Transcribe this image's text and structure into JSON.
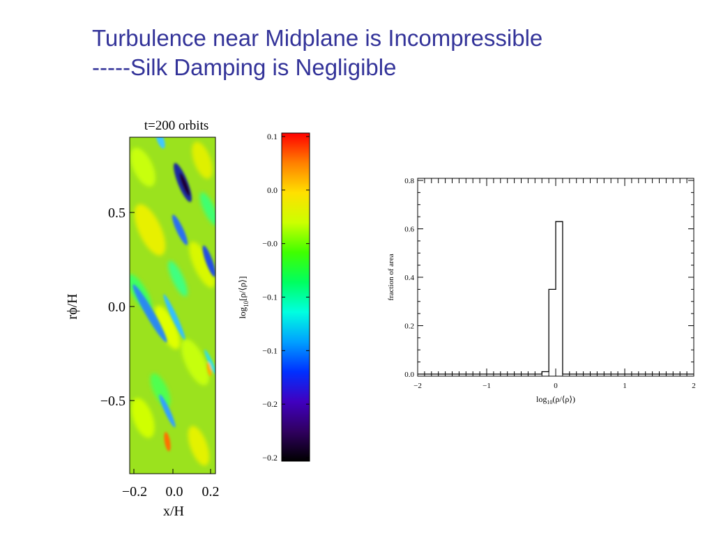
{
  "slide": {
    "title_line1": "Turbulence near Midplane is Incompressible",
    "title_line2": "-----Silk Damping is Negligible",
    "title_color": "#333399"
  },
  "density_map": {
    "title": "t=200  orbits",
    "xlabel": "x/H",
    "ylabel": "rϕ/H",
    "x_ticks": [
      "−0.2",
      "0.0",
      "0.2"
    ],
    "y_ticks": [
      "0.5",
      "0.0",
      "−0.5"
    ]
  },
  "colorbar": {
    "label": "log10[ρ/⟨ρ⟩]",
    "label_main": "log",
    "label_sub": "10",
    "label_tail": "[ρ/⟨ρ⟩]",
    "ticks": [
      "0.1",
      "0.0",
      "−0.0",
      "−0.1",
      "−0.1",
      "−0.2",
      "−0.2"
    ],
    "colormap": [
      "#ff0000",
      "#ff8000",
      "#ffe000",
      "#ccff00",
      "#40ff00",
      "#00ff60",
      "#00ffe0",
      "#00a0ff",
      "#0030ff",
      "#4000c0",
      "#300060",
      "#000000"
    ]
  },
  "chart_data": {
    "type": "histogram",
    "xlabel": "log10(ρ/⟨ρ⟩)",
    "xlabel_main": "log",
    "xlabel_sub": "10",
    "xlabel_tail": "(ρ/⟨ρ⟩)",
    "ylabel": "fraction of area",
    "xlim": [
      -2,
      2
    ],
    "ylim": [
      0,
      0.8
    ],
    "x_ticks": [
      "−2",
      "−1",
      "0",
      "1",
      "2"
    ],
    "y_ticks": [
      "0.0",
      "0.2",
      "0.4",
      "0.6",
      "0.8"
    ],
    "bins": [
      {
        "x0": -0.2,
        "x1": -0.1,
        "value": 0.01
      },
      {
        "x0": -0.1,
        "x1": 0.0,
        "value": 0.35
      },
      {
        "x0": 0.0,
        "x1": 0.1,
        "value": 0.63
      }
    ]
  }
}
